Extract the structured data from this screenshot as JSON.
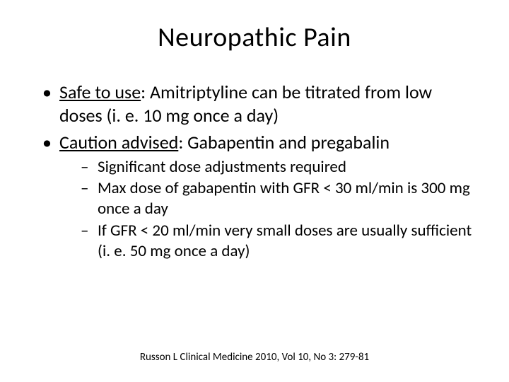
{
  "title": "Neuropathic Pain",
  "bullets": [
    {
      "label": "Safe to use",
      "text": ": Amitriptyline can be titrated from low doses (i. e. 10 mg once a day)"
    },
    {
      "label": "Caution advised",
      "text": ": Gabapentin and pregabalin",
      "sub": [
        "Significant dose adjustments required",
        "Max dose of gabapentin with GFR < 30 ml/min is 300 mg once a day",
        "If GFR < 20 ml/min very small doses are usually sufficient (i. e. 50 mg once a day)"
      ]
    }
  ],
  "citation": "Russon L Clinical Medicine 2010, Vol 10, No 3: 279-81",
  "styling": {
    "background_color": "#ffffff",
    "text_color": "#000000",
    "title_fontsize": 38,
    "l1_fontsize": 26,
    "l2_fontsize": 23,
    "citation_fontsize": 15,
    "font_family": "Calibri",
    "l1_bullet_glyph": "•",
    "l2_bullet_glyph": "–"
  }
}
